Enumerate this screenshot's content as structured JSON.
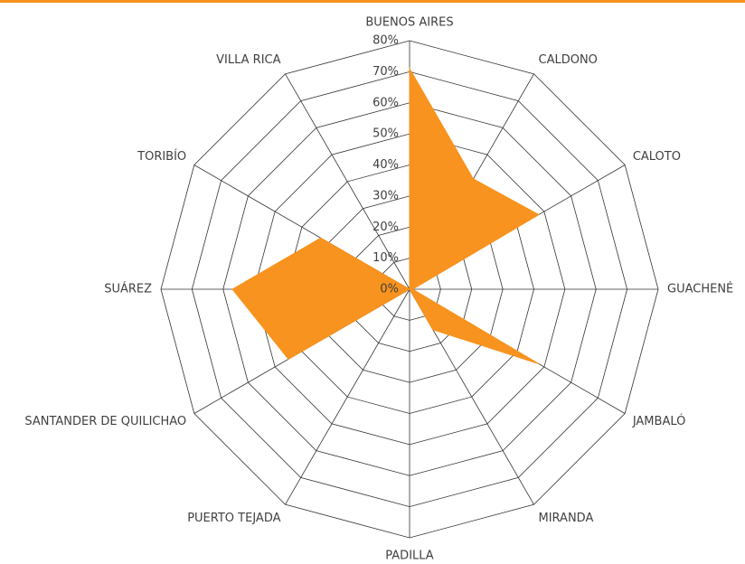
{
  "chart_data": {
    "type": "radar",
    "categories": [
      "BUENOS AIRES",
      "CALDONO",
      "CALOTO",
      "GUACHENÉ",
      "JAMBALÓ",
      "MIRANDA",
      "PADILLA",
      "PUERTO TEJADA",
      "SANTANDER DE QUILICHAO",
      "SUÁREZ",
      "TORIBÍO",
      "VILLA RICA"
    ],
    "values": [
      71,
      41,
      48,
      1,
      48,
      15,
      0,
      0,
      45,
      57,
      33,
      0
    ],
    "color": "#f7931e",
    "ylim": [
      0,
      80
    ],
    "yticks": [
      {
        "value": 0,
        "label": "0%"
      },
      {
        "value": 10,
        "label": "10%"
      },
      {
        "value": 20,
        "label": "20%"
      },
      {
        "value": 30,
        "label": "30%"
      },
      {
        "value": 40,
        "label": "40%"
      },
      {
        "value": 50,
        "label": "50%"
      },
      {
        "value": 60,
        "label": "60%"
      },
      {
        "value": 70,
        "label": "70%"
      },
      {
        "value": 80,
        "label": "80%"
      }
    ],
    "grid": true
  }
}
